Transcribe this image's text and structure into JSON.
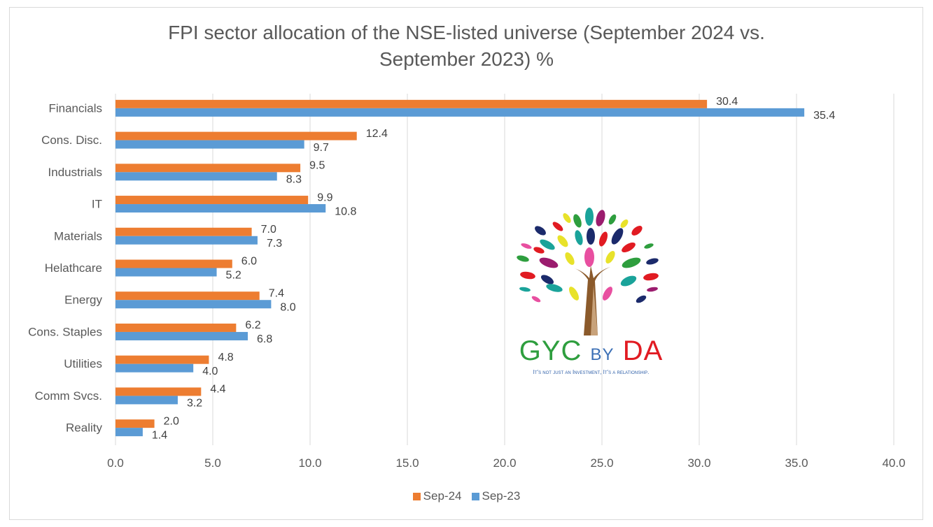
{
  "title_line1": "FPI sector allocation of the NSE-listed universe (September 2024 vs.",
  "title_line2": "September 2023) %",
  "logo": {
    "brand_main": "GYC",
    "brand_by": "BY",
    "brand_da": "DA",
    "tagline": "It's not just an Investment, It's a relationship."
  },
  "colors": {
    "sep24": "#ed7d31",
    "sep23": "#5b9bd5"
  },
  "chart_data": {
    "type": "bar",
    "orientation": "horizontal",
    "categories": [
      "Financials",
      "Cons. Disc.",
      "Industrials",
      "IT",
      "Materials",
      "Helathcare",
      "Energy",
      "Cons. Staples",
      "Utilities",
      "Comm Svcs.",
      "Reality"
    ],
    "series": [
      {
        "name": "Sep-24",
        "values": [
          30.4,
          12.4,
          9.5,
          9.9,
          7.0,
          6.0,
          7.4,
          6.2,
          4.8,
          4.4,
          2.0
        ]
      },
      {
        "name": "Sep-23",
        "values": [
          35.4,
          9.7,
          8.3,
          10.8,
          7.3,
          5.2,
          8.0,
          6.8,
          4.0,
          3.2,
          1.4
        ]
      }
    ],
    "xlim": [
      0,
      40
    ],
    "xticks": [
      "0.0",
      "5.0",
      "10.0",
      "15.0",
      "20.0",
      "25.0",
      "30.0",
      "35.0",
      "40.0"
    ],
    "grid": true,
    "legend_position": "bottom"
  }
}
